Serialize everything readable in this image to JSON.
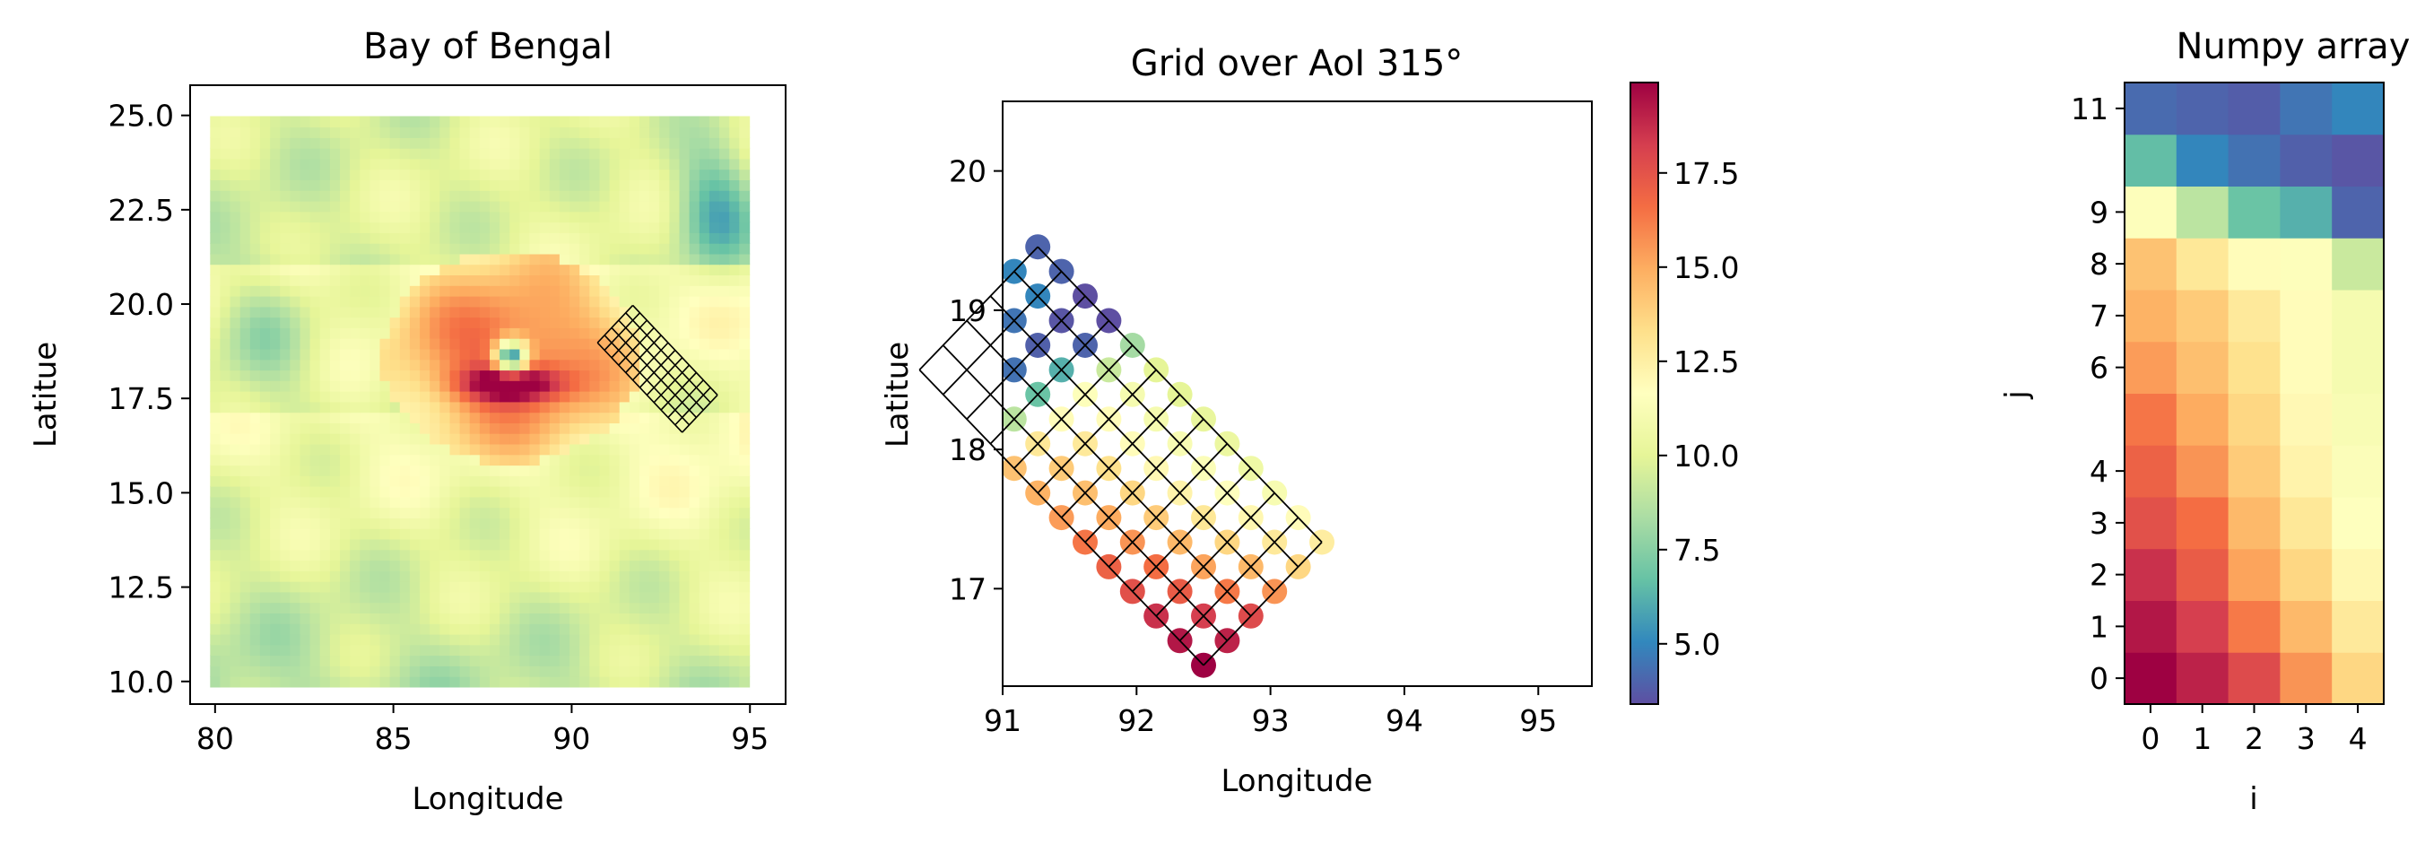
{
  "chart_data": [
    {
      "type": "heatmap",
      "title": "Bay of Bengal",
      "xlabel": "Longitude",
      "ylabel": "Latitue",
      "xlim": [
        79.3,
        96.0
      ],
      "ylim": [
        9.4,
        25.8
      ],
      "xticks": [
        80,
        85,
        90,
        95
      ],
      "xtick_labels": [
        "80",
        "85",
        "90",
        "95"
      ],
      "yticks": [
        10.0,
        12.5,
        15.0,
        17.5,
        20.0,
        22.5,
        25.0
      ],
      "ytick_labels": [
        "10.0",
        "12.5",
        "15.0",
        "17.5",
        "20.0",
        "22.5",
        "25.0"
      ],
      "colormap": "Spectral_r",
      "value_range": [
        3.4,
        19.9
      ],
      "grid_overlay": {
        "origin": [
          93.1,
          16.6
        ],
        "angle_deg": 45,
        "cols": 5,
        "rows": 12,
        "cell_deg": 0.28
      }
    },
    {
      "type": "scatter",
      "title": "Grid over AoI 315°",
      "xlabel": "Longitude",
      "ylabel": "Latitue",
      "xlim": [
        91.0,
        95.4
      ],
      "ylim": [
        16.3,
        20.5
      ],
      "xticks": [
        91,
        92,
        93,
        94,
        95
      ],
      "xtick_labels": [
        "91",
        "92",
        "93",
        "94",
        "95"
      ],
      "yticks": [
        17,
        18,
        19,
        20
      ],
      "ytick_labels": [
        "17",
        "18",
        "19",
        "20"
      ],
      "colormap": "Spectral_r",
      "colorbar": {
        "min": 3.4,
        "max": 19.9,
        "ticks": [
          5.0,
          7.5,
          10.0,
          12.5,
          15.0,
          17.5
        ],
        "tick_labels": [
          "5.0",
          "7.5",
          "10.0",
          "12.5",
          "15.0",
          "17.5"
        ]
      },
      "grid_overlay": {
        "origin": [
          92.5,
          16.45
        ],
        "angle_deg": 45,
        "cols": 5,
        "rows": 12,
        "cell_deg": 0.25
      }
    },
    {
      "type": "heatmap",
      "title": "Numpy array",
      "xlabel": "i",
      "ylabel": "j",
      "xticks": [
        0,
        1,
        2,
        3,
        4
      ],
      "xtick_labels": [
        "0",
        "1",
        "2",
        "3",
        "4"
      ],
      "yticks": [
        0,
        1,
        2,
        3,
        4,
        6,
        7,
        8,
        9,
        11
      ],
      "ytick_labels": [
        "0",
        "1",
        "2",
        "3",
        "4",
        "6",
        "7",
        "8",
        "9",
        "11"
      ],
      "colormap": "Spectral_r",
      "value_range": [
        3.4,
        19.9
      ],
      "values": [
        [
          19.9,
          19.0,
          17.8,
          15.6,
          13.6
        ],
        [
          19.3,
          18.2,
          16.3,
          14.6,
          12.8
        ],
        [
          18.6,
          17.2,
          15.2,
          13.6,
          12.1
        ],
        [
          17.6,
          16.6,
          14.6,
          12.9,
          11.6
        ],
        [
          17.0,
          15.6,
          14.0,
          12.3,
          11.4
        ],
        [
          16.4,
          15.0,
          13.6,
          12.0,
          11.2
        ],
        [
          15.4,
          14.4,
          13.2,
          11.8,
          11.0
        ],
        [
          14.8,
          14.0,
          12.8,
          11.8,
          11.0
        ],
        [
          14.3,
          12.9,
          11.8,
          11.5,
          9.2
        ],
        [
          11.5,
          8.8,
          6.8,
          6.2,
          4.0
        ],
        [
          6.6,
          5.0,
          4.4,
          3.9,
          3.6
        ],
        [
          4.2,
          4.0,
          3.8,
          4.5,
          5.0
        ]
      ]
    }
  ]
}
